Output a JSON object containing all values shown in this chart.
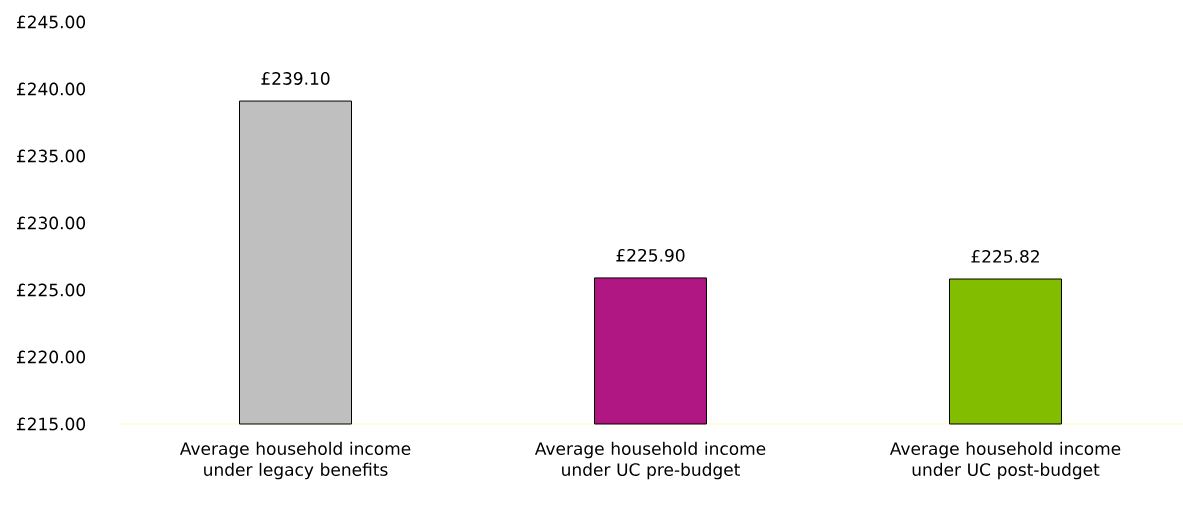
{
  "chart_data": {
    "type": "bar",
    "categories": [
      "Average household income under legacy benefits",
      "Average household income under UC pre-budget",
      "Average household income under UC post-budget"
    ],
    "values": [
      239.1,
      225.9,
      225.82
    ],
    "colors": [
      "#bfbfbf",
      "#b01783",
      "#82bd00"
    ],
    "value_labels": [
      "£239.10",
      "£225.90",
      "£225.82"
    ],
    "ylim": [
      215,
      245
    ],
    "yticks": [
      {
        "value": 215,
        "label": "£215.00"
      },
      {
        "value": 220,
        "label": "£220.00"
      },
      {
        "value": 225,
        "label": "£225.00"
      },
      {
        "value": 230,
        "label": "£230.00"
      },
      {
        "value": 235,
        "label": "£235.00"
      },
      {
        "value": 240,
        "label": "£240.00"
      },
      {
        "value": 245,
        "label": "£245.00"
      }
    ],
    "grid": false
  }
}
